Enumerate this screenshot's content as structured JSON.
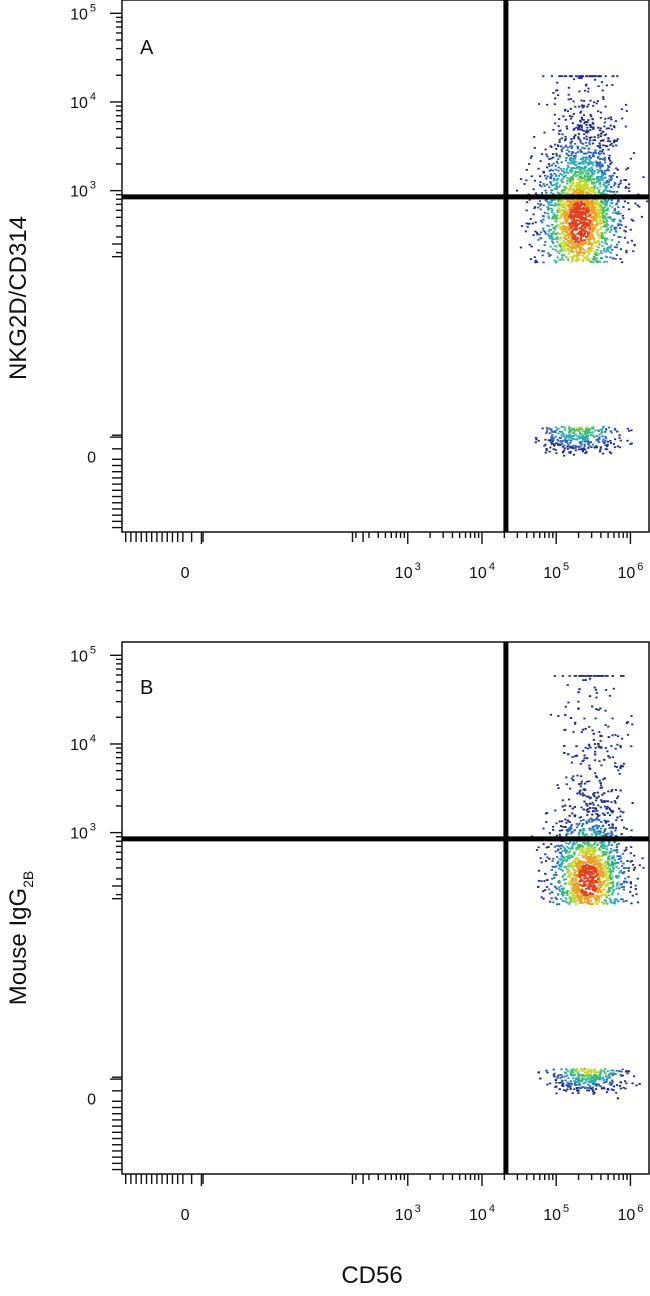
{
  "chart_data": [
    {
      "type": "scatter",
      "panel_label": "A",
      "ylabel": "NKG2D/CD314",
      "ylabel_sub": "",
      "xlabel": "",
      "x_ticks": [
        {
          "value": 0,
          "base": "0",
          "exp": ""
        },
        {
          "value": 1000,
          "base": "10",
          "exp": "3"
        },
        {
          "value": 10000,
          "base": "10",
          "exp": "4"
        },
        {
          "value": 100000,
          "base": "10",
          "exp": "5"
        },
        {
          "value": 1000000,
          "base": "10",
          "exp": "6"
        }
      ],
      "y_ticks": [
        {
          "value": 0,
          "base": "0",
          "exp": ""
        },
        {
          "value": 1000,
          "base": "10",
          "exp": "3"
        },
        {
          "value": 10000,
          "base": "10",
          "exp": "4"
        },
        {
          "value": 100000,
          "base": "10",
          "exp": "5"
        }
      ],
      "x_scale": "biexponential",
      "y_scale": "biexponential",
      "quadrant_gate": {
        "x": 21000,
        "y": 850
      },
      "population": {
        "x_center": 200000,
        "y_center": 450,
        "x_spread_decades": 0.28,
        "y_spread_decades": 0.45,
        "y_tail_max": 20000,
        "events": 2600
      },
      "density_colormap": [
        "#1f2f8f",
        "#2a66b8",
        "#2aa7b0",
        "#3fbf6a",
        "#c6d92e",
        "#f0a020",
        "#e2401d"
      ]
    },
    {
      "type": "scatter",
      "panel_label": "B",
      "ylabel": "Mouse IgG",
      "ylabel_sub": "2B",
      "xlabel": "CD56",
      "x_ticks": [
        {
          "value": 0,
          "base": "0",
          "exp": ""
        },
        {
          "value": 1000,
          "base": "10",
          "exp": "3"
        },
        {
          "value": 10000,
          "base": "10",
          "exp": "4"
        },
        {
          "value": 100000,
          "base": "10",
          "exp": "5"
        },
        {
          "value": 1000000,
          "base": "10",
          "exp": "6"
        }
      ],
      "y_ticks": [
        {
          "value": 0,
          "base": "0",
          "exp": ""
        },
        {
          "value": 1000,
          "base": "10",
          "exp": "3"
        },
        {
          "value": 10000,
          "base": "10",
          "exp": "4"
        },
        {
          "value": 100000,
          "base": "10",
          "exp": "5"
        }
      ],
      "x_scale": "biexponential",
      "y_scale": "biexponential",
      "quadrant_gate": {
        "x": 21000,
        "y": 850
      },
      "population": {
        "x_center": 260000,
        "y_center": 300,
        "x_spread_decades": 0.26,
        "y_spread_decades": 0.35,
        "y_tail_max": 60000,
        "events": 2400
      },
      "density_colormap": [
        "#1f2f8f",
        "#2a66b8",
        "#2aa7b0",
        "#3fbf6a",
        "#c6d92e",
        "#f0a020",
        "#e2401d"
      ]
    }
  ]
}
